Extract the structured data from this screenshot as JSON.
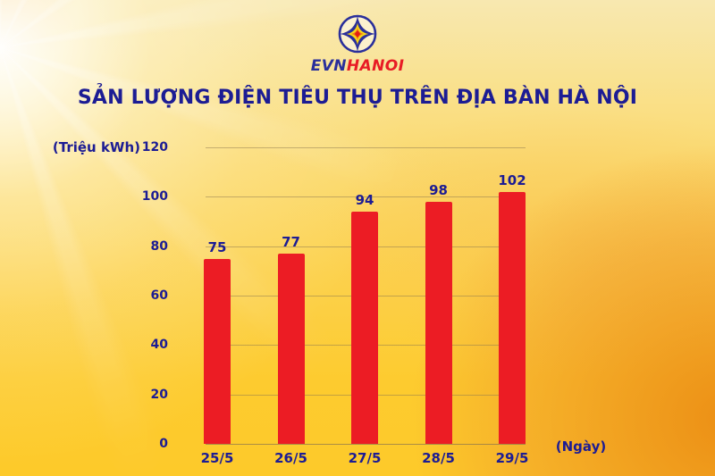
{
  "logo": {
    "evn": "EVN",
    "hanoi": "HANOI"
  },
  "title": "SẢN LƯỢNG ĐIỆN TIÊU THỤ TRÊN ĐỊA BÀN HÀ NỘI",
  "chart_data": {
    "type": "bar",
    "title": "SẢN LƯỢNG ĐIỆN TIÊU THỤ TRÊN ĐỊA BÀN HÀ NỘI",
    "categories": [
      "25/5",
      "26/5",
      "27/5",
      "28/5",
      "29/5"
    ],
    "values": [
      75,
      77,
      94,
      98,
      102
    ],
    "ylabel": "(Triệu kWh)",
    "xlabel": "(Ngày)",
    "yticks": [
      0,
      20,
      40,
      60,
      80,
      100,
      120
    ],
    "ylim": [
      0,
      120
    ],
    "grid": true,
    "legend_position": "none",
    "bar_color": "#EC1C24",
    "label_color": "#1C1C94",
    "grid_color": "rgba(140,120,80,0.5)"
  },
  "colors": {
    "navy_text": "#1C1C94",
    "logo_blue": "#2A2F9B",
    "logo_red": "#E81C25",
    "background_gold": "#FCD24B"
  }
}
